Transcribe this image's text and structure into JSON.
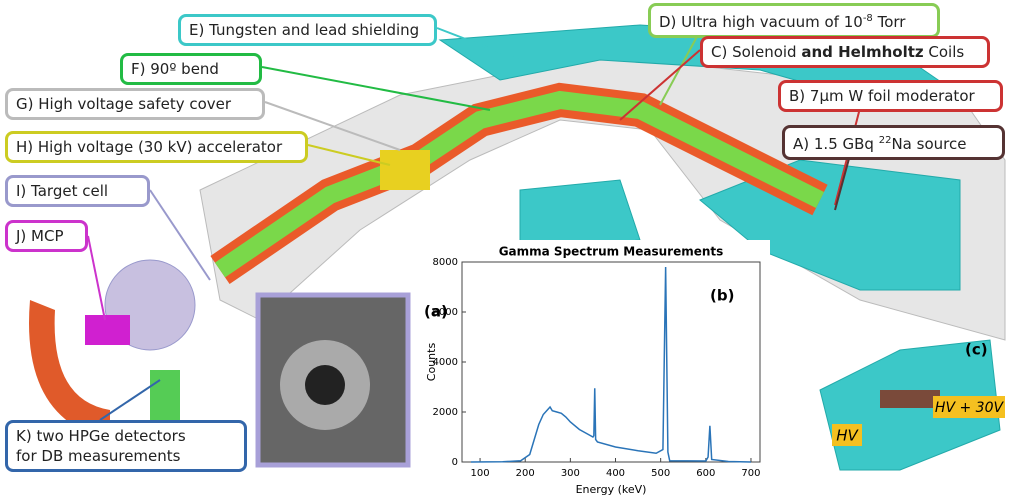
{
  "callouts": [
    {
      "parts": [
        {
          "text": "E) Tungsten and lead shielding"
        }
      ]
    },
    {
      "parts": [
        {
          "text": "D) Ultra high vacuum of 10"
        },
        {
          "text": "-8",
          "sup": true
        },
        {
          "text": " Torr"
        }
      ]
    },
    {
      "parts": [
        {
          "text": "F) 90º bend"
        }
      ]
    },
    {
      "parts": [
        {
          "text": "C) Solenoid "
        },
        {
          "text": "and Helmholtz",
          "bold": true
        },
        {
          "text": " Coils"
        }
      ]
    },
    {
      "parts": [
        {
          "text": "G) High voltage safety cover"
        }
      ]
    },
    {
      "parts": [
        {
          "text": "B) 7µm W foil moderator"
        }
      ]
    },
    {
      "parts": [
        {
          "text": "H) High voltage (30 kV) accelerator"
        }
      ]
    },
    {
      "parts": [
        {
          "text": "A) 1.5 GBq "
        },
        {
          "text": "22",
          "sup": true
        },
        {
          "text": "Na source"
        }
      ]
    },
    {
      "parts": [
        {
          "text": "I) Target cell"
        }
      ]
    },
    {
      "parts": [
        {
          "text": "J) MCP"
        }
      ]
    },
    {
      "parts": [
        {
          "text": "K) two HPGe detectors"
        },
        {
          "text": "for DB measurements",
          "newline": true
        }
      ]
    }
  ],
  "panels": {
    "a": "(a)",
    "c": "(c)",
    "hv": "HV",
    "hv30": "HV + 30V"
  },
  "chart_data": {
    "type": "line",
    "title": "Gamma Spectrum Measurements",
    "panel": "(b)",
    "x_label": "Energy (keV)",
    "y_label": "Counts",
    "color": "#2a74b8",
    "x": [
      80,
      150,
      190,
      210,
      220,
      230,
      240,
      250,
      255,
      260,
      270,
      280,
      290,
      300,
      320,
      340,
      350,
      352,
      354,
      356,
      360,
      400,
      450,
      490,
      505,
      511,
      516,
      520,
      600,
      605,
      609,
      613,
      650,
      700
    ],
    "values": [
      0,
      10,
      50,
      300,
      900,
      1500,
      1900,
      2100,
      2200,
      2050,
      2000,
      1950,
      1800,
      1600,
      1300,
      1100,
      1000,
      1050,
      2950,
      900,
      800,
      600,
      450,
      350,
      500,
      7800,
      400,
      50,
      40,
      200,
      1450,
      100,
      20,
      0
    ],
    "xlim": [
      60,
      720
    ],
    "ylim": [
      0,
      8000
    ],
    "xticks": [
      100,
      200,
      300,
      400,
      500,
      600,
      700
    ],
    "yticks": [
      0,
      2000,
      4000,
      6000,
      8000
    ]
  }
}
